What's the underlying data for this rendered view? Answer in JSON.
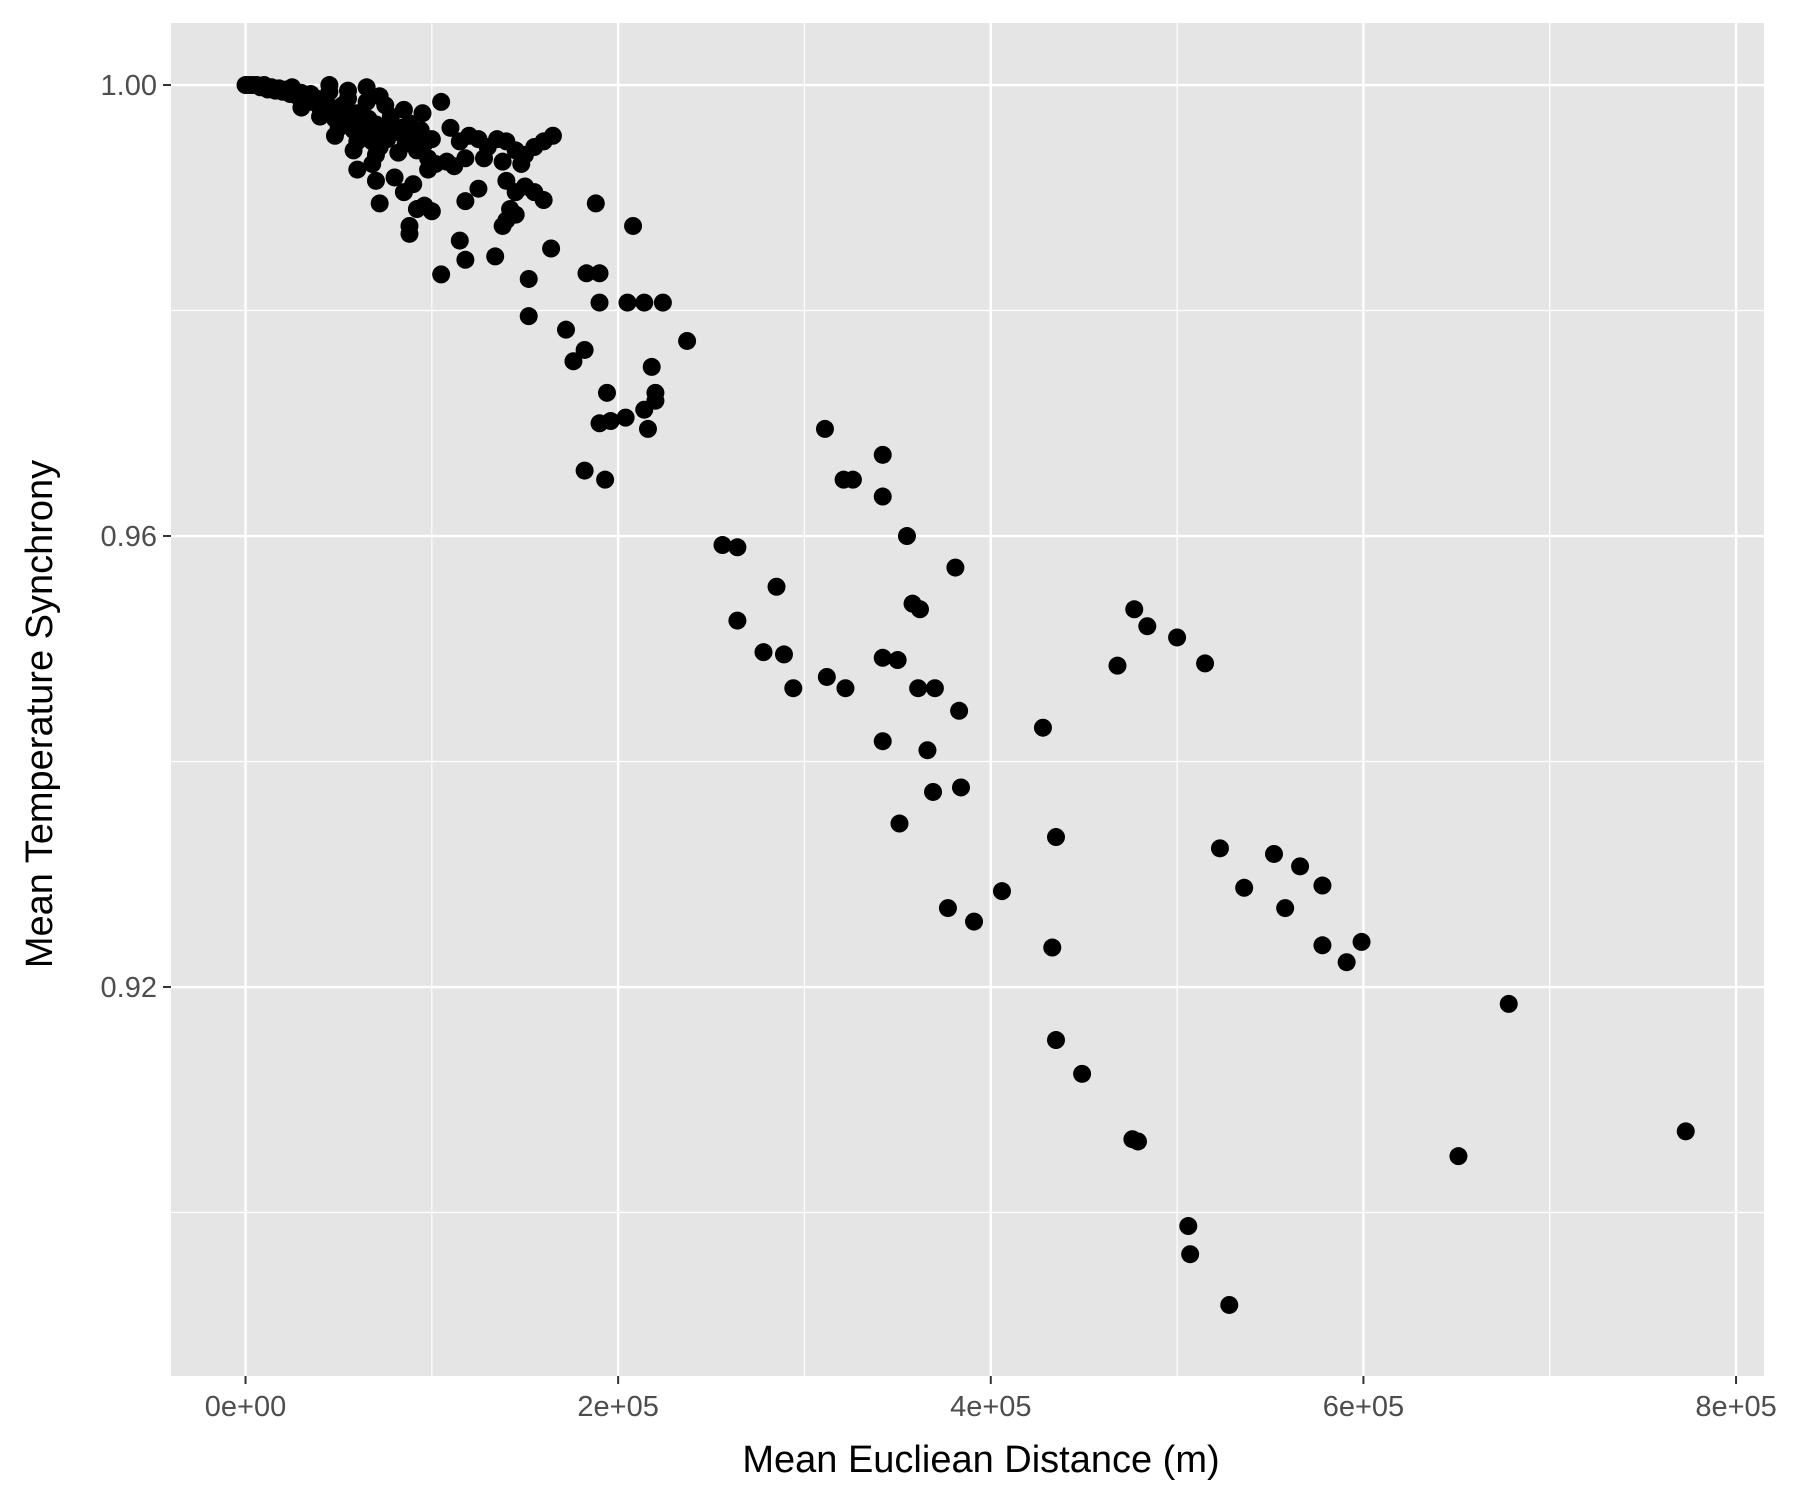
{
  "chart_data": {
    "type": "scatter",
    "title": "",
    "xlabel": "Mean Eucliean Distance (m)",
    "ylabel": "Mean Temperature Synchrony",
    "xlim": [
      -40000,
      815000
    ],
    "ylim": [
      0.8855,
      1.0055
    ],
    "x_ticks": [
      0,
      200000,
      400000,
      600000,
      800000
    ],
    "x_tick_labels": [
      "0e+00",
      "2e+05",
      "4e+05",
      "6e+05",
      "8e+05"
    ],
    "y_ticks": [
      1.0,
      0.96,
      0.92
    ],
    "y_tick_labels": [
      "1.00",
      "0.96",
      "0.92"
    ],
    "grid": true,
    "background": "#e5e5e5",
    "grid_color": "#ffffff",
    "point_color": "#000000",
    "points": [
      [
        0,
        1.0
      ],
      [
        2000,
        1.0
      ],
      [
        4000,
        1.0
      ],
      [
        6000,
        1.0
      ],
      [
        8000,
        0.9998
      ],
      [
        10000,
        1.0
      ],
      [
        12000,
        0.9996
      ],
      [
        14000,
        0.9998
      ],
      [
        16000,
        0.9995
      ],
      [
        18000,
        0.9997
      ],
      [
        20000,
        0.9994
      ],
      [
        22000,
        0.9996
      ],
      [
        24000,
        0.9992
      ],
      [
        26000,
        0.9995
      ],
      [
        28000,
        0.999
      ],
      [
        30000,
        0.9993
      ],
      [
        32000,
        0.9987
      ],
      [
        34000,
        0.999
      ],
      [
        36000,
        0.9985
      ],
      [
        38000,
        0.9988
      ],
      [
        40000,
        0.998
      ],
      [
        42000,
        0.9985
      ],
      [
        44000,
        0.9975
      ],
      [
        46000,
        0.998
      ],
      [
        48000,
        0.997
      ],
      [
        50000,
        0.9978
      ],
      [
        52000,
        0.9982
      ],
      [
        54000,
        0.9965
      ],
      [
        56000,
        0.9972
      ],
      [
        58000,
        0.996
      ],
      [
        60000,
        0.9975
      ],
      [
        62000,
        0.9968
      ],
      [
        64000,
        0.9955
      ],
      [
        66000,
        0.997
      ],
      [
        68000,
        0.995
      ],
      [
        70000,
        0.9965
      ],
      [
        72000,
        0.9945
      ],
      [
        74000,
        0.996
      ],
      [
        76000,
        0.9952
      ],
      [
        78000,
        0.9972
      ],
      [
        80000,
        0.9958
      ],
      [
        82000,
        0.994
      ],
      [
        84000,
        0.9962
      ],
      [
        86000,
        0.9948
      ],
      [
        88000,
        0.9966
      ],
      [
        90000,
        0.9955
      ],
      [
        92000,
        0.9942
      ],
      [
        94000,
        0.996
      ],
      [
        96000,
        0.9948
      ],
      [
        98000,
        0.9935
      ],
      [
        100000,
        0.9952
      ],
      [
        25000,
        0.9998
      ],
      [
        35000,
        0.9992
      ],
      [
        45000,
        0.9994
      ],
      [
        55000,
        0.9988
      ],
      [
        65000,
        0.9985
      ],
      [
        75000,
        0.9982
      ],
      [
        85000,
        0.9978
      ],
      [
        95000,
        0.9975
      ],
      [
        30000,
        0.998
      ],
      [
        40000,
        0.9972
      ],
      [
        50000,
        0.9962
      ],
      [
        60000,
        0.995
      ],
      [
        70000,
        0.9938
      ],
      [
        48000,
        0.9955
      ],
      [
        58000,
        0.9942
      ],
      [
        68000,
        0.993
      ],
      [
        45000,
        1.0
      ],
      [
        55000,
        0.9995
      ],
      [
        65000,
        0.9998
      ],
      [
        72000,
        0.999
      ],
      [
        105000,
        0.9985
      ],
      [
        110000,
        0.9962
      ],
      [
        115000,
        0.995
      ],
      [
        120000,
        0.9955
      ],
      [
        125000,
        0.9952
      ],
      [
        130000,
        0.9945
      ],
      [
        135000,
        0.9952
      ],
      [
        140000,
        0.995
      ],
      [
        145000,
        0.9942
      ],
      [
        150000,
        0.9938
      ],
      [
        155000,
        0.9945
      ],
      [
        160000,
        0.995
      ],
      [
        165000,
        0.9955
      ],
      [
        118000,
        0.9935
      ],
      [
        128000,
        0.9935
      ],
      [
        138000,
        0.9932
      ],
      [
        148000,
        0.993
      ],
      [
        98000,
        0.9925
      ],
      [
        102000,
        0.993
      ],
      [
        108000,
        0.9932
      ],
      [
        112000,
        0.9928
      ],
      [
        60000,
        0.9925
      ],
      [
        70000,
        0.9915
      ],
      [
        80000,
        0.9918
      ],
      [
        90000,
        0.9912
      ],
      [
        72000,
        0.9895
      ],
      [
        85000,
        0.9905
      ],
      [
        92000,
        0.989
      ],
      [
        96000,
        0.9893
      ],
      [
        100000,
        0.9888
      ],
      [
        88000,
        0.9875
      ],
      [
        88000,
        0.9868
      ],
      [
        118000,
        0.9897
      ],
      [
        125000,
        0.9908
      ],
      [
        140000,
        0.9915
      ],
      [
        145000,
        0.9905
      ],
      [
        150000,
        0.991
      ],
      [
        155000,
        0.9905
      ],
      [
        160000,
        0.9898
      ],
      [
        142000,
        0.989
      ],
      [
        145000,
        0.9885
      ],
      [
        140000,
        0.988
      ],
      [
        138000,
        0.9875
      ],
      [
        115000,
        0.9862
      ],
      [
        118000,
        0.9845
      ],
      [
        105000,
        0.9832
      ],
      [
        134000,
        0.9848
      ],
      [
        152000,
        0.9828
      ],
      [
        164000,
        0.9855
      ],
      [
        152000,
        0.9795
      ],
      [
        172000,
        0.9783
      ],
      [
        176000,
        0.9755
      ],
      [
        182000,
        0.9765
      ],
      [
        183000,
        0.9833
      ],
      [
        190000,
        0.9833
      ],
      [
        188000,
        0.9895
      ],
      [
        208000,
        0.9875
      ],
      [
        190000,
        0.9807
      ],
      [
        205000,
        0.9807
      ],
      [
        214000,
        0.9807
      ],
      [
        224000,
        0.9807
      ],
      [
        237000,
        0.9773
      ],
      [
        218000,
        0.975
      ],
      [
        220000,
        0.9727
      ],
      [
        220000,
        0.972
      ],
      [
        214000,
        0.9712
      ],
      [
        204000,
        0.9705
      ],
      [
        196000,
        0.9702
      ],
      [
        190000,
        0.97
      ],
      [
        216000,
        0.9695
      ],
      [
        194000,
        0.9727
      ],
      [
        182000,
        0.9658
      ],
      [
        193000,
        0.965
      ],
      [
        256000,
        0.9592
      ],
      [
        264000,
        0.959
      ],
      [
        264000,
        0.9525
      ],
      [
        285000,
        0.9555
      ],
      [
        278000,
        0.9497
      ],
      [
        289000,
        0.9495
      ],
      [
        294000,
        0.9465
      ],
      [
        311000,
        0.9695
      ],
      [
        321000,
        0.965
      ],
      [
        326000,
        0.965
      ],
      [
        342000,
        0.9672
      ],
      [
        342000,
        0.9635
      ],
      [
        355000,
        0.96
      ],
      [
        381000,
        0.9572
      ],
      [
        358000,
        0.954
      ],
      [
        362000,
        0.9535
      ],
      [
        312000,
        0.9475
      ],
      [
        322000,
        0.9465
      ],
      [
        342000,
        0.9492
      ],
      [
        350000,
        0.949
      ],
      [
        361000,
        0.9465
      ],
      [
        370000,
        0.9465
      ],
      [
        383000,
        0.9445
      ],
      [
        342000,
        0.9418
      ],
      [
        366000,
        0.941
      ],
      [
        384000,
        0.9377
      ],
      [
        369000,
        0.9373
      ],
      [
        351000,
        0.9345
      ],
      [
        428000,
        0.943
      ],
      [
        435000,
        0.9333
      ],
      [
        406000,
        0.9285
      ],
      [
        377000,
        0.927
      ],
      [
        391000,
        0.9258
      ],
      [
        433000,
        0.9235
      ],
      [
        468000,
        0.9485
      ],
      [
        477000,
        0.9535
      ],
      [
        484000,
        0.952
      ],
      [
        500000,
        0.951
      ],
      [
        515000,
        0.9487
      ],
      [
        523000,
        0.9323
      ],
      [
        536000,
        0.9288
      ],
      [
        552000,
        0.9318
      ],
      [
        558000,
        0.927
      ],
      [
        566000,
        0.9307
      ],
      [
        578000,
        0.929
      ],
      [
        578000,
        0.9237
      ],
      [
        591000,
        0.9222
      ],
      [
        599000,
        0.924
      ],
      [
        435000,
        0.9153
      ],
      [
        449000,
        0.9123
      ],
      [
        476000,
        0.9065
      ],
      [
        479000,
        0.9063
      ],
      [
        506000,
        0.8988
      ],
      [
        507000,
        0.8963
      ],
      [
        528000,
        0.8918
      ],
      [
        678000,
        0.9185
      ],
      [
        651000,
        0.905
      ],
      [
        773000,
        0.9072
      ]
    ]
  }
}
